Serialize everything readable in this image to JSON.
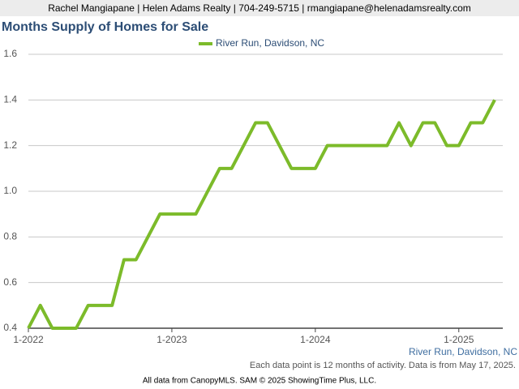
{
  "header": "Rachel Mangiapane | Helen Adams Realty | 704-249-5715 | rmangiapane@helenadamsrealty.com",
  "chart_data": {
    "type": "line",
    "title": "Months Supply of Homes for Sale",
    "categories": [
      "1-2022",
      null,
      null,
      null,
      null,
      null,
      null,
      null,
      null,
      null,
      null,
      null,
      "1-2023",
      null,
      null,
      null,
      null,
      null,
      null,
      null,
      null,
      null,
      null,
      null,
      "1-2024",
      null,
      null,
      null,
      null,
      null,
      null,
      null,
      null,
      null,
      null,
      null,
      "1-2025",
      null,
      null,
      null
    ],
    "series": [
      {
        "name": "River Run, Davidson, NC",
        "color": "#7cbb2a",
        "values": [
          0.4,
          0.5,
          0.4,
          0.4,
          0.4,
          0.5,
          0.5,
          0.5,
          0.7,
          0.7,
          0.8,
          0.9,
          0.9,
          0.9,
          0.9,
          1.0,
          1.1,
          1.1,
          1.2,
          1.3,
          1.3,
          1.2,
          1.1,
          1.1,
          1.1,
          1.2,
          1.2,
          1.2,
          1.2,
          1.2,
          1.2,
          1.3,
          1.2,
          1.3,
          1.3,
          1.2,
          1.2,
          1.3,
          1.3,
          1.4
        ]
      }
    ],
    "ylim": [
      0.4,
      1.6
    ],
    "yticks": [
      0.4,
      0.6,
      0.8,
      {
        "value": 1.0,
        "label": "1.0"
      },
      1.2,
      1.4,
      1.6
    ],
    "grid": true,
    "legend": "top",
    "area_label": "River Run, Davidson, NC",
    "note": "Each data point is 12 months of activity. Data is from May 17, 2025."
  },
  "footer": "All data from CanopyMLS. SAM © 2025 ShowingTime Plus, LLC."
}
